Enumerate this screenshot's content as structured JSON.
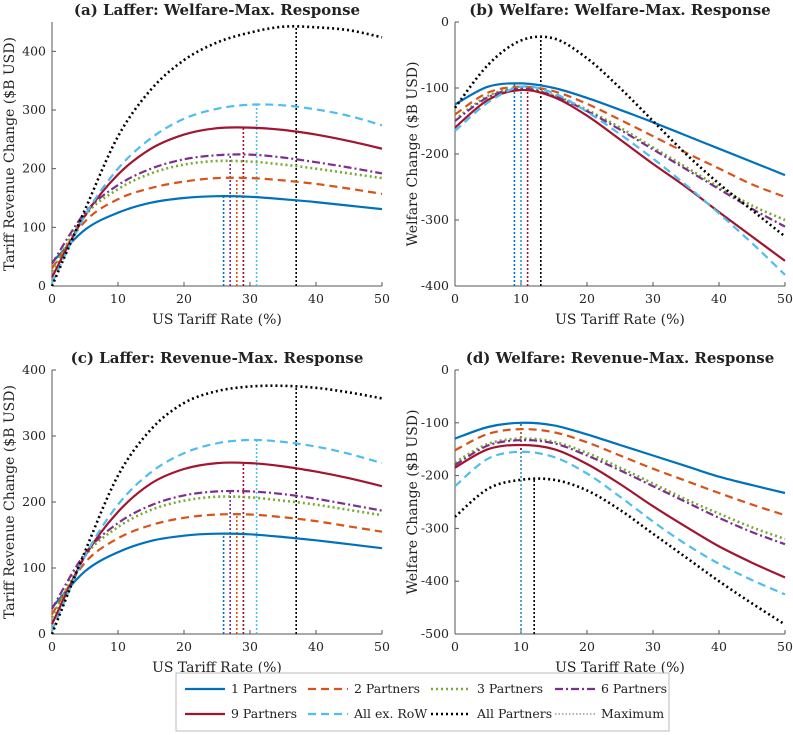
{
  "chart_data": [
    {
      "type": "line",
      "title": "(a) Laffer: Welfare-Max. Response",
      "xlabel": "US Tariff Rate (%)",
      "ylabel": "Tariff Revenue Change ($B USD)",
      "xlim": [
        0,
        50
      ],
      "ylim": [
        0,
        450
      ],
      "xticks": [
        0,
        10,
        20,
        30,
        40,
        50
      ],
      "yticks": [
        0,
        100,
        200,
        300,
        400
      ],
      "series": [
        {
          "name": "1 Partners",
          "x": [
            0,
            5,
            10,
            15,
            20,
            25,
            30,
            35,
            40,
            45,
            50
          ],
          "y": [
            40,
            96,
            125,
            142,
            150,
            153,
            152,
            148,
            143,
            137,
            131
          ],
          "max_x": 26
        },
        {
          "name": "2 Partners",
          "x": [
            0,
            5,
            10,
            15,
            20,
            25,
            30,
            35,
            40,
            45,
            50
          ],
          "y": [
            30,
            110,
            148,
            167,
            178,
            184,
            184,
            180,
            174,
            166,
            157
          ],
          "max_x": 28
        },
        {
          "name": "3 Partners",
          "x": [
            0,
            5,
            10,
            15,
            20,
            25,
            30,
            35,
            40,
            45,
            50
          ],
          "y": [
            25,
            120,
            165,
            192,
            207,
            213,
            212,
            207,
            200,
            192,
            184
          ],
          "max_x": 29
        },
        {
          "name": "6 Partners",
          "x": [
            0,
            5,
            10,
            15,
            20,
            25,
            30,
            35,
            40,
            45,
            50
          ],
          "y": [
            38,
            125,
            172,
            200,
            216,
            223,
            224,
            219,
            211,
            202,
            192
          ],
          "max_x": 27
        },
        {
          "name": "9 Partners",
          "x": [
            0,
            5,
            10,
            15,
            20,
            25,
            30,
            35,
            40,
            45,
            50
          ],
          "y": [
            15,
            120,
            190,
            234,
            258,
            269,
            270,
            266,
            258,
            247,
            234
          ],
          "max_x": 29
        },
        {
          "name": "All ex. RoW",
          "x": [
            0,
            5,
            10,
            15,
            20,
            25,
            30,
            35,
            40,
            45,
            50
          ],
          "y": [
            5,
            120,
            200,
            252,
            285,
            302,
            309,
            308,
            301,
            290,
            274
          ],
          "max_x": 31
        },
        {
          "name": "All Partners",
          "x": [
            0,
            5,
            10,
            15,
            20,
            25,
            30,
            35,
            40,
            45,
            50
          ],
          "y": [
            0,
            130,
            255,
            335,
            385,
            415,
            432,
            442,
            441,
            436,
            424
          ],
          "max_x": 37
        }
      ]
    },
    {
      "type": "line",
      "title": "(b) Welfare: Welfare-Max. Response",
      "xlabel": "US Tariff Rate (%)",
      "ylabel": "Welfare Change ($B USD)",
      "xlim": [
        0,
        50
      ],
      "ylim": [
        -400,
        0
      ],
      "xticks": [
        0,
        10,
        20,
        30,
        40,
        50
      ],
      "yticks": [
        -400,
        -300,
        -200,
        -100,
        0
      ],
      "series": [
        {
          "name": "1 Partners",
          "x": [
            0,
            5,
            10,
            15,
            20,
            25,
            30,
            35,
            40,
            45,
            50
          ],
          "y": [
            -125,
            -98,
            -93,
            -100,
            -115,
            -133,
            -152,
            -172,
            -192,
            -212,
            -232
          ],
          "max_x": 9
        },
        {
          "name": "2 Partners",
          "x": [
            0,
            5,
            10,
            15,
            20,
            25,
            30,
            35,
            40,
            45,
            50
          ],
          "y": [
            -140,
            -107,
            -98,
            -105,
            -124,
            -148,
            -173,
            -198,
            -222,
            -246,
            -265
          ],
          "max_x": 10
        },
        {
          "name": "3 Partners",
          "x": [
            0,
            5,
            10,
            15,
            20,
            25,
            30,
            35,
            40,
            45,
            50
          ],
          "y": [
            -148,
            -112,
            -100,
            -111,
            -133,
            -160,
            -190,
            -220,
            -250,
            -278,
            -300
          ],
          "max_x": 10
        },
        {
          "name": "6 Partners",
          "x": [
            0,
            5,
            10,
            15,
            20,
            25,
            30,
            35,
            40,
            45,
            50
          ],
          "y": [
            -150,
            -114,
            -101,
            -112,
            -135,
            -163,
            -193,
            -223,
            -253,
            -283,
            -310
          ],
          "max_x": 10
        },
        {
          "name": "9 Partners",
          "x": [
            0,
            5,
            10,
            15,
            20,
            25,
            30,
            35,
            40,
            45,
            50
          ],
          "y": [
            -160,
            -118,
            -103,
            -114,
            -142,
            -178,
            -215,
            -250,
            -288,
            -325,
            -362
          ],
          "max_x": 11
        },
        {
          "name": "All ex. RoW",
          "x": [
            0,
            5,
            10,
            15,
            20,
            25,
            30,
            35,
            40,
            45,
            50
          ],
          "y": [
            -165,
            -122,
            -98,
            -108,
            -136,
            -170,
            -207,
            -247,
            -290,
            -335,
            -383
          ],
          "max_x": 10
        },
        {
          "name": "All Partners",
          "x": [
            0,
            5,
            10,
            15,
            20,
            25,
            30,
            35,
            40,
            45,
            50
          ],
          "y": [
            -130,
            -65,
            -28,
            -25,
            -55,
            -100,
            -150,
            -200,
            -245,
            -285,
            -325
          ],
          "max_x": 13
        }
      ]
    },
    {
      "type": "line",
      "title": "(c) Laffer: Revenue-Max. Response",
      "xlabel": "US Tariff Rate (%)",
      "ylabel": "Tariff Revenue Change ($B USD)",
      "xlim": [
        0,
        50
      ],
      "ylim": [
        0,
        400
      ],
      "xticks": [
        0,
        10,
        20,
        30,
        40,
        50
      ],
      "yticks": [
        0,
        100,
        200,
        300,
        400
      ],
      "series": [
        {
          "name": "1 Partners",
          "x": [
            0,
            5,
            10,
            15,
            20,
            25,
            30,
            35,
            40,
            45,
            50
          ],
          "y": [
            40,
            95,
            124,
            141,
            149,
            152,
            151,
            147,
            142,
            136,
            130
          ],
          "max_x": 26
        },
        {
          "name": "2 Partners",
          "x": [
            0,
            5,
            10,
            15,
            20,
            25,
            30,
            35,
            40,
            45,
            50
          ],
          "y": [
            30,
            108,
            145,
            165,
            176,
            181,
            181,
            177,
            171,
            163,
            155
          ],
          "max_x": 28
        },
        {
          "name": "3 Partners",
          "x": [
            0,
            5,
            10,
            15,
            20,
            25,
            30,
            35,
            40,
            45,
            50
          ],
          "y": [
            25,
            118,
            162,
            188,
            202,
            208,
            207,
            202,
            196,
            188,
            180
          ],
          "max_x": 29
        },
        {
          "name": "6 Partners",
          "x": [
            0,
            5,
            10,
            15,
            20,
            25,
            30,
            35,
            40,
            45,
            50
          ],
          "y": [
            38,
            122,
            168,
            195,
            210,
            216,
            216,
            212,
            205,
            196,
            187
          ],
          "max_x": 27
        },
        {
          "name": "9 Partners",
          "x": [
            0,
            5,
            10,
            15,
            20,
            25,
            30,
            35,
            40,
            45,
            50
          ],
          "y": [
            15,
            118,
            185,
            228,
            250,
            259,
            259,
            254,
            246,
            236,
            224
          ],
          "max_x": 29
        },
        {
          "name": "All ex. RoW",
          "x": [
            0,
            5,
            10,
            15,
            20,
            25,
            30,
            35,
            40,
            45,
            50
          ],
          "y": [
            5,
            118,
            196,
            245,
            274,
            289,
            294,
            291,
            284,
            273,
            259
          ],
          "max_x": 31
        },
        {
          "name": "All Partners",
          "x": [
            0,
            5,
            10,
            15,
            20,
            25,
            30,
            35,
            40,
            45,
            50
          ],
          "y": [
            0,
            125,
            240,
            310,
            350,
            368,
            375,
            376,
            373,
            366,
            357
          ],
          "max_x": 37
        }
      ]
    },
    {
      "type": "line",
      "title": "(d) Welfare: Revenue-Max. Response",
      "xlabel": "US Tariff Rate (%)",
      "ylabel": "Welfare Change ($B USD)",
      "xlim": [
        0,
        50
      ],
      "ylim": [
        -500,
        0
      ],
      "xticks": [
        0,
        10,
        20,
        30,
        40,
        50
      ],
      "yticks": [
        -500,
        -400,
        -300,
        -200,
        -100,
        0
      ],
      "series": [
        {
          "name": "1 Partners",
          "x": [
            0,
            5,
            10,
            15,
            20,
            25,
            30,
            35,
            40,
            45,
            50
          ],
          "y": [
            -130,
            -108,
            -100,
            -105,
            -122,
            -142,
            -162,
            -182,
            -202,
            -218,
            -233
          ],
          "max_x": 10
        },
        {
          "name": "2 Partners",
          "x": [
            0,
            5,
            10,
            15,
            20,
            25,
            30,
            35,
            40,
            45,
            50
          ],
          "y": [
            -152,
            -121,
            -112,
            -118,
            -137,
            -162,
            -187,
            -210,
            -233,
            -255,
            -275
          ],
          "max_x": 10
        },
        {
          "name": "3 Partners",
          "x": [
            0,
            5,
            10,
            15,
            20,
            25,
            30,
            35,
            40,
            45,
            50
          ],
          "y": [
            -175,
            -140,
            -130,
            -136,
            -157,
            -185,
            -215,
            -245,
            -272,
            -298,
            -320
          ],
          "max_x": 10
        },
        {
          "name": "6 Partners",
          "x": [
            0,
            5,
            10,
            15,
            20,
            25,
            30,
            35,
            40,
            45,
            50
          ],
          "y": [
            -180,
            -143,
            -133,
            -139,
            -162,
            -190,
            -220,
            -250,
            -280,
            -307,
            -330
          ],
          "max_x": 10
        },
        {
          "name": "9 Partners",
          "x": [
            0,
            5,
            10,
            15,
            20,
            25,
            30,
            35,
            40,
            45,
            50
          ],
          "y": [
            -185,
            -150,
            -142,
            -150,
            -178,
            -216,
            -258,
            -297,
            -334,
            -365,
            -393
          ],
          "max_x": 10
        },
        {
          "name": "All ex. RoW",
          "x": [
            0,
            5,
            10,
            15,
            20,
            25,
            30,
            35,
            40,
            45,
            50
          ],
          "y": [
            -220,
            -168,
            -155,
            -165,
            -196,
            -240,
            -287,
            -330,
            -367,
            -398,
            -425
          ],
          "max_x": 10
        },
        {
          "name": "All Partners",
          "x": [
            0,
            5,
            10,
            15,
            20,
            25,
            30,
            35,
            40,
            45,
            50
          ],
          "y": [
            -278,
            -225,
            -208,
            -208,
            -228,
            -265,
            -310,
            -355,
            -400,
            -442,
            -482
          ],
          "max_x": 12
        }
      ]
    }
  ],
  "legend": {
    "placement": "bottom",
    "entries": [
      {
        "name": "1 Partners",
        "color": "#0072BD",
        "style": "solid"
      },
      {
        "name": "2 Partners",
        "color": "#D95319",
        "style": "dashed"
      },
      {
        "name": "3 Partners",
        "color": "#77AC30",
        "style": "dotted"
      },
      {
        "name": "6 Partners",
        "color": "#7E2F8E",
        "style": "dashdot"
      },
      {
        "name": "9 Partners",
        "color": "#A2142F",
        "style": "solid"
      },
      {
        "name": "All ex. RoW",
        "color": "#4DBEEE",
        "style": "dashed"
      },
      {
        "name": "All Partners",
        "color": "#000000",
        "style": "dotted"
      },
      {
        "name": "Maximum",
        "color": "#999999",
        "style": "maxdot"
      }
    ]
  }
}
